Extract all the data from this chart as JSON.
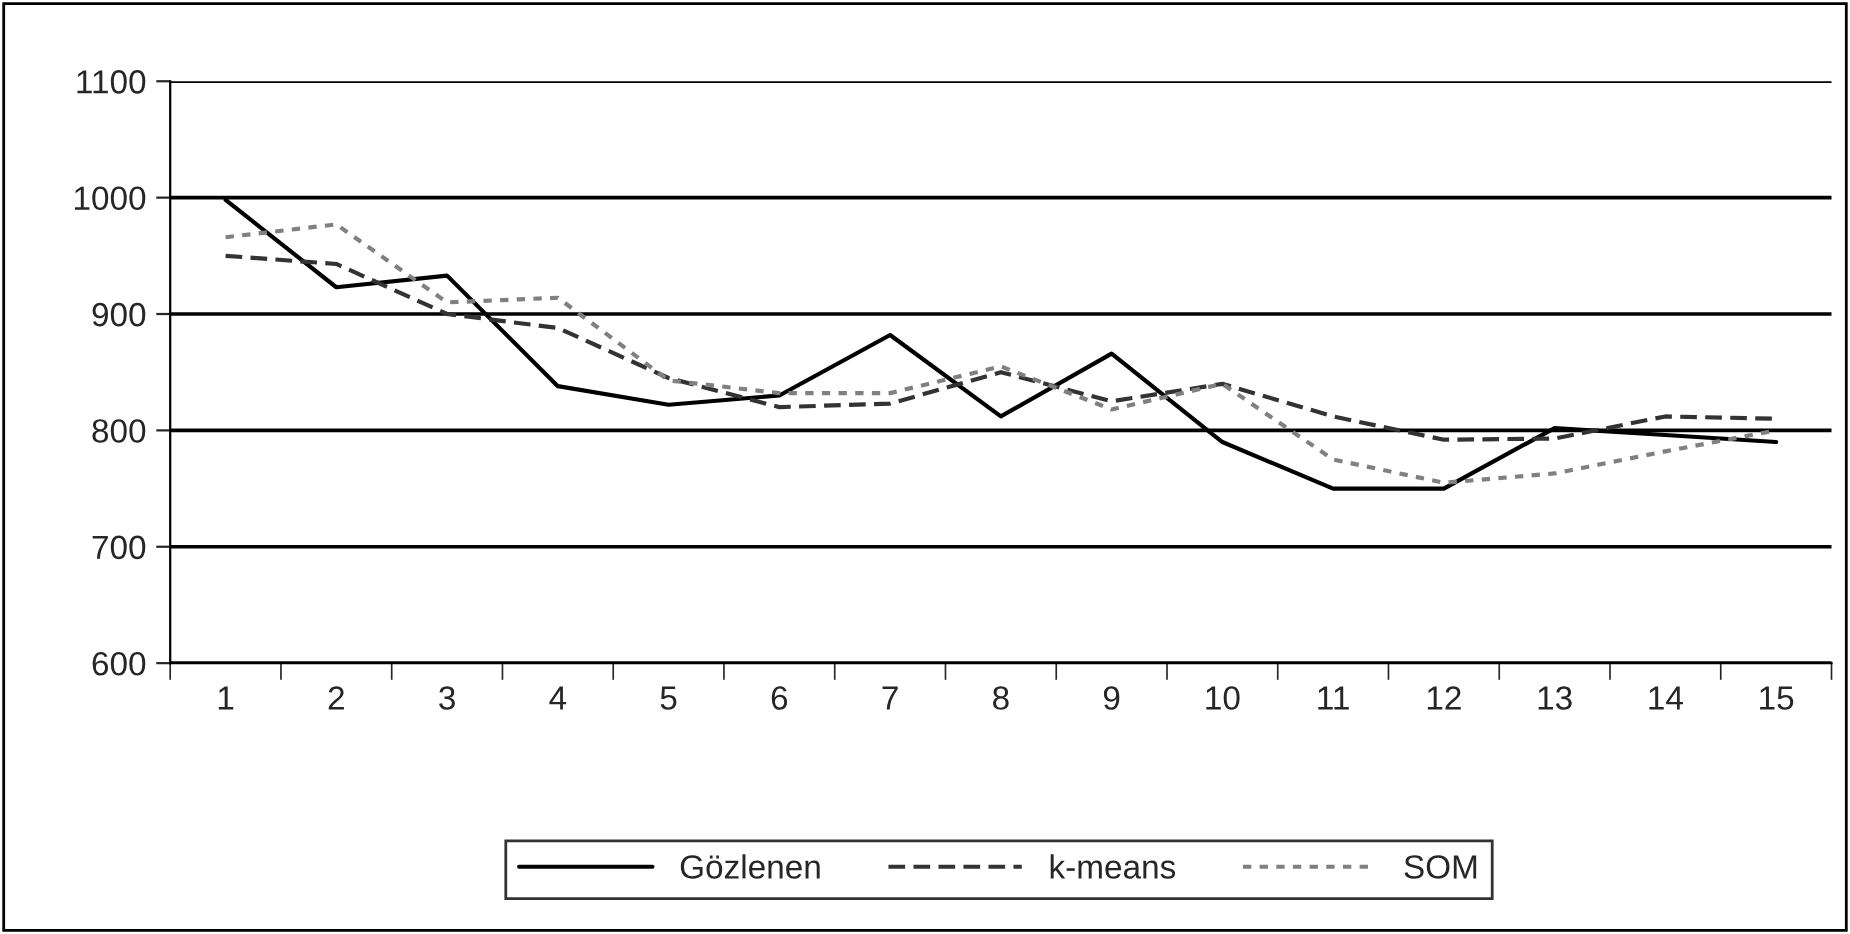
{
  "chart_data": {
    "type": "line",
    "categories": [
      "1",
      "2",
      "3",
      "4",
      "5",
      "6",
      "7",
      "8",
      "9",
      "10",
      "11",
      "12",
      "13",
      "14",
      "15"
    ],
    "series": [
      {
        "name": "Gözlenen",
        "color": "#000000",
        "line_style": "solid",
        "values": [
          998,
          923,
          933,
          838,
          822,
          830,
          882,
          812,
          866,
          790,
          750,
          750,
          802,
          796,
          790
        ]
      },
      {
        "name": "k-means",
        "color": "#333333",
        "line_style": "dashed",
        "values": [
          950,
          943,
          900,
          888,
          845,
          820,
          823,
          850,
          825,
          840,
          812,
          792,
          793,
          812,
          810
        ]
      },
      {
        "name": "SOM",
        "color": "#808080",
        "line_style": "dotted",
        "values": [
          966,
          977,
          910,
          914,
          843,
          832,
          832,
          855,
          818,
          840,
          775,
          755,
          763,
          782,
          800
        ]
      }
    ],
    "ylim": [
      600,
      1100
    ],
    "yticks": [
      600,
      700,
      800,
      900,
      1000,
      1100
    ],
    "grid": "y",
    "legend": "bottom"
  }
}
